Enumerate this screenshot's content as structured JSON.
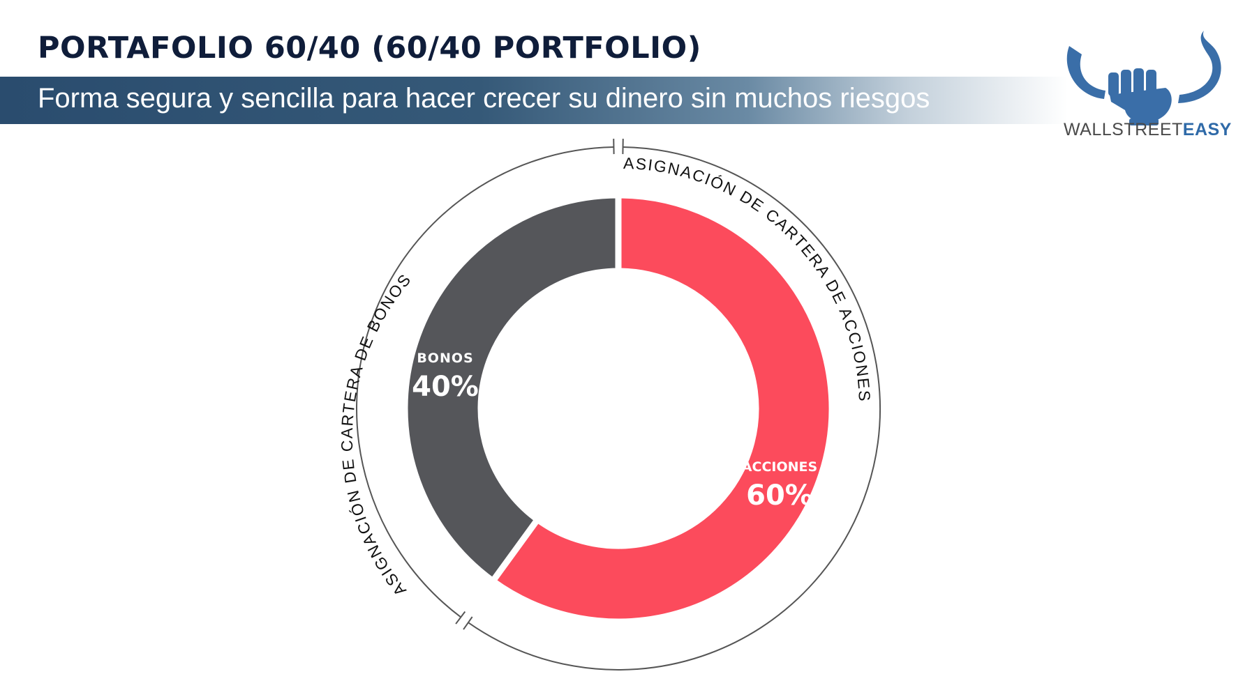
{
  "header": {
    "title": "PORTAFOLIO 60/40 (60/40 PORTFOLIO)",
    "subtitle": "Forma segura y sencilla para hacer crecer su dinero sin muchos riesgos"
  },
  "logo": {
    "text_main": "WALLSTREET",
    "text_highlight": "EASY",
    "icon": "bull-fist-logo-icon",
    "color": "#3a6ea8"
  },
  "chart_data": {
    "type": "pie",
    "variant": "donut",
    "slices": [
      {
        "label": "ACCIONES",
        "value": 60,
        "display": "60%",
        "color": "#fc4b5c"
      },
      {
        "label": "BONOS",
        "value": 40,
        "display": "40%",
        "color": "#55565a"
      }
    ],
    "ring_labels": {
      "acciones": "ASIGNACIÓN  DE CARTERA DE ACCIONES",
      "bonos": "ASIGNACIÓN  DE CARTERA DE BONOS"
    }
  }
}
